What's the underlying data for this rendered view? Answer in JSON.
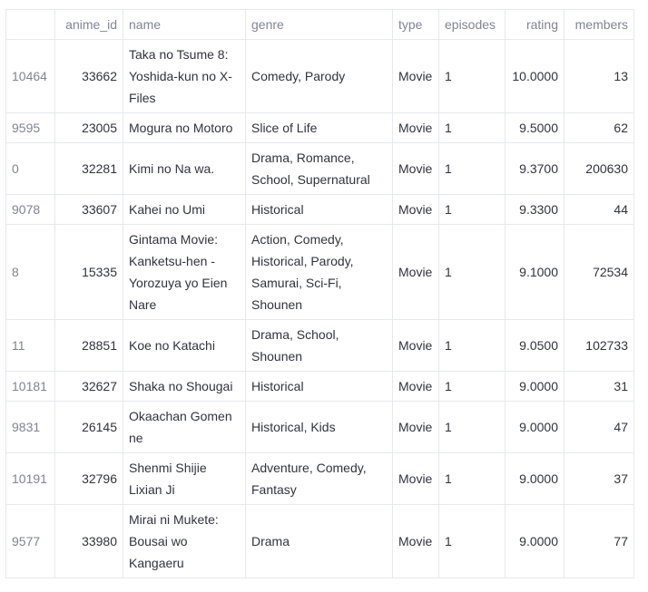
{
  "columns": [
    "",
    "anime_id",
    "name",
    "genre",
    "type",
    "episodes",
    "rating",
    "members"
  ],
  "rows": [
    {
      "index": "10464",
      "anime_id": "33662",
      "name": "Taka no Tsume 8: Yoshida-kun no X-Files",
      "genre": "Comedy, Parody",
      "type": "Movie",
      "episodes": "1",
      "rating": "10.0000",
      "members": "13"
    },
    {
      "index": "9595",
      "anime_id": "23005",
      "name": "Mogura no Motoro",
      "genre": "Slice of Life",
      "type": "Movie",
      "episodes": "1",
      "rating": "9.5000",
      "members": "62"
    },
    {
      "index": "0",
      "anime_id": "32281",
      "name": "Kimi no Na wa.",
      "genre": "Drama, Romance, School, Supernatural",
      "type": "Movie",
      "episodes": "1",
      "rating": "9.3700",
      "members": "200630"
    },
    {
      "index": "9078",
      "anime_id": "33607",
      "name": "Kahei no Umi",
      "genre": "Historical",
      "type": "Movie",
      "episodes": "1",
      "rating": "9.3300",
      "members": "44"
    },
    {
      "index": "8",
      "anime_id": "15335",
      "name": "Gintama Movie: Kanketsu-hen - Yorozuya yo Eien Nare",
      "genre": "Action, Comedy, Historical, Parody, Samurai, Sci-Fi, Shounen",
      "type": "Movie",
      "episodes": "1",
      "rating": "9.1000",
      "members": "72534"
    },
    {
      "index": "11",
      "anime_id": "28851",
      "name": "Koe no Katachi",
      "genre": "Drama, School, Shounen",
      "type": "Movie",
      "episodes": "1",
      "rating": "9.0500",
      "members": "102733"
    },
    {
      "index": "10181",
      "anime_id": "32627",
      "name": "Shaka no Shougai",
      "genre": "Historical",
      "type": "Movie",
      "episodes": "1",
      "rating": "9.0000",
      "members": "31"
    },
    {
      "index": "9831",
      "anime_id": "26145",
      "name": "Okaachan Gomen ne",
      "genre": "Historical, Kids",
      "type": "Movie",
      "episodes": "1",
      "rating": "9.0000",
      "members": "47"
    },
    {
      "index": "10191",
      "anime_id": "32796",
      "name": "Shenmi Shijie Lixian Ji",
      "genre": "Adventure, Comedy, Fantasy",
      "type": "Movie",
      "episodes": "1",
      "rating": "9.0000",
      "members": "37"
    },
    {
      "index": "9577",
      "anime_id": "33980",
      "name": "Mirai ni Mukete: Bousai wo Kangaeru",
      "genre": "Drama",
      "type": "Movie",
      "episodes": "1",
      "rating": "9.0000",
      "members": "77"
    }
  ]
}
